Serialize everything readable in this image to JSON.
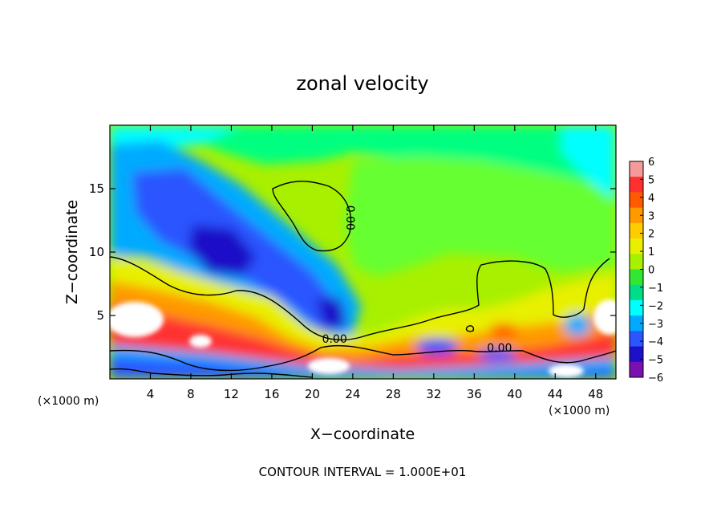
{
  "chart_data": {
    "type": "heatmap",
    "title": "zonal velocity",
    "xlabel": "X−coordinate",
    "ylabel": "Z−coordinate",
    "x_unit_left": "(×1000 m)",
    "x_unit_right": "(×1000 m)",
    "xlim": [
      0,
      50
    ],
    "ylim": [
      0,
      20
    ],
    "x_ticks": [
      4,
      8,
      12,
      16,
      20,
      24,
      28,
      32,
      36,
      40,
      44,
      48
    ],
    "y_ticks": [
      5,
      10,
      15
    ],
    "colorbar": {
      "levels": [
        6,
        5,
        4,
        3,
        2,
        1,
        0,
        -1,
        -2,
        -3,
        -4,
        -5,
        -6
      ],
      "colors": [
        "#f59a9a",
        "#ff3030",
        "#ff5a00",
        "#ff9900",
        "#ffcc00",
        "#e8f000",
        "#a6f000",
        "#33e633",
        "#00dd88",
        "#00ffff",
        "#00aaff",
        "#2b55ff",
        "#1e10c8",
        "#7a10b0"
      ]
    },
    "contour_labels": [
      {
        "text": "0.00",
        "x": 23.7,
        "z": 12.7,
        "rotate": 90
      },
      {
        "text": "0.00",
        "x": 22.2,
        "z": 3.1
      },
      {
        "text": "0.00",
        "x": 38.5,
        "z": 2.4
      }
    ],
    "footer": "CONTOUR INTERVAL = 1.000E+01"
  }
}
